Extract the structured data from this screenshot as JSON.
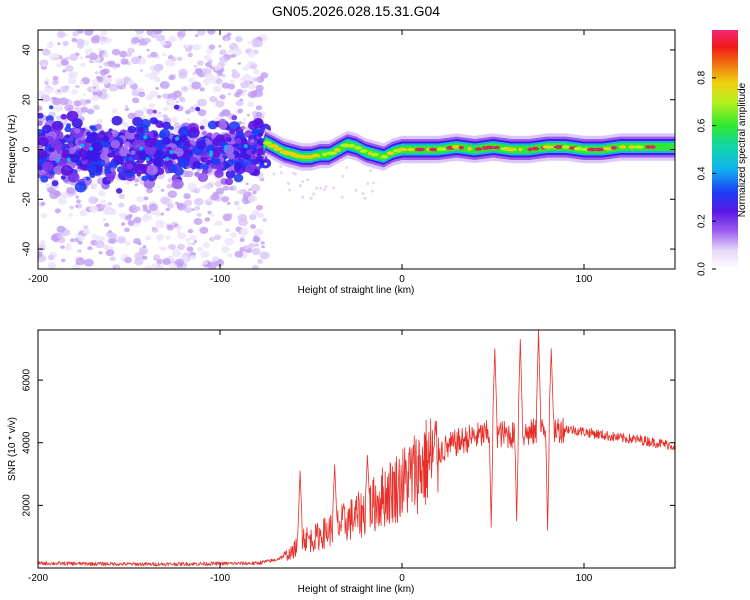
{
  "title": "GN05.2026.028.15.31.G04",
  "colors": {
    "snr_line": "#e8302a",
    "strong_ridge": "#e0245e",
    "axis": "#000000"
  },
  "chart_data": [
    {
      "type": "heatmap",
      "name": "spectrogram",
      "xlabel": "Height of straight line (km)",
      "ylabel": "Frequency (Hz)",
      "xlim": [
        -200,
        150
      ],
      "ylim": [
        -48,
        48
      ],
      "xticks": [
        -200,
        -100,
        0,
        100
      ],
      "yticks": [
        -40,
        -20,
        0,
        20,
        40
      ],
      "colorbar": {
        "label": "Normalized spectral amplitude",
        "range": [
          0,
          1
        ],
        "ticks": [
          0.0,
          0.2,
          0.4,
          0.6,
          0.8
        ],
        "tick_labels": [
          "0.0",
          "0.2",
          "0.4",
          "0.6",
          "0.8"
        ],
        "colormap": "rainbow (white-violet-blue-cyan-green-yellow-red-pink)"
      },
      "ridge_center_hz": [
        [
          -75,
          3
        ],
        [
          -70,
          1
        ],
        [
          -65,
          -1
        ],
        [
          -60,
          -2
        ],
        [
          -55,
          -3
        ],
        [
          -50,
          -3
        ],
        [
          -45,
          -2
        ],
        [
          -40,
          -2
        ],
        [
          -35,
          0
        ],
        [
          -30,
          2
        ],
        [
          -25,
          1
        ],
        [
          -20,
          -1
        ],
        [
          -15,
          -2
        ],
        [
          -10,
          -3
        ],
        [
          -5,
          -1
        ],
        [
          0,
          0
        ],
        [
          10,
          0
        ],
        [
          20,
          0
        ],
        [
          30,
          1
        ],
        [
          40,
          0
        ],
        [
          50,
          1
        ],
        [
          60,
          0
        ],
        [
          70,
          0
        ],
        [
          80,
          1
        ],
        [
          90,
          1
        ],
        [
          100,
          0
        ],
        [
          110,
          0
        ],
        [
          120,
          1
        ],
        [
          130,
          1
        ],
        [
          140,
          1
        ],
        [
          150,
          1
        ]
      ],
      "noise_region_km": [
        -200,
        -75
      ]
    },
    {
      "type": "line",
      "name": "snr",
      "xlabel": "Height of straight line (km)",
      "ylabel": "SNR (10 * v/v)",
      "xlim": [
        -200,
        150
      ],
      "ylim": [
        0,
        7600
      ],
      "xticks": [
        -200,
        -100,
        0,
        100
      ],
      "yticks": [
        2000,
        4000,
        6000
      ],
      "envelope": {
        "x": [
          -200,
          -140,
          -80,
          -70,
          -60,
          -55,
          -50,
          -40,
          -30,
          -20,
          -10,
          0,
          10,
          20,
          30,
          40,
          50,
          60,
          70,
          80,
          90,
          100,
          110,
          120,
          130,
          140,
          150
        ],
        "y": [
          150,
          120,
          150,
          250,
          500,
          1000,
          900,
          1200,
          1500,
          1800,
          2300,
          2700,
          3200,
          3700,
          4000,
          4200,
          4300,
          4250,
          4300,
          4400,
          4450,
          4350,
          4250,
          4150,
          4100,
          4000,
          3900
        ]
      },
      "spikes": [
        {
          "x": -56,
          "y": 3100
        },
        {
          "x": -37,
          "y": 3300
        },
        {
          "x": -19,
          "y": 3600
        },
        {
          "x": 51,
          "y": 7000
        },
        {
          "x": 65,
          "y": 7300
        },
        {
          "x": 75,
          "y": 7600
        },
        {
          "x": 82,
          "y": 7000
        }
      ],
      "dips": [
        {
          "x": 49,
          "y": 1300
        },
        {
          "x": 63,
          "y": 1500
        },
        {
          "x": 80,
          "y": 1200
        }
      ]
    }
  ]
}
